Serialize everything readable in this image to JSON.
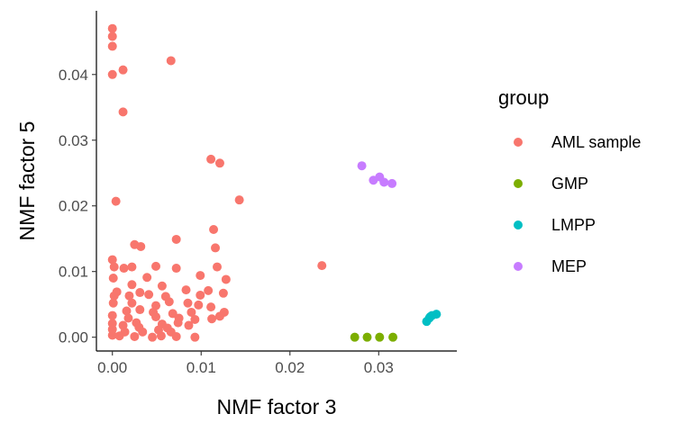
{
  "chart_data": {
    "type": "scatter",
    "xlabel": "NMF factor 3",
    "ylabel": "NMF factor 5",
    "xlim": [
      -0.0018,
      0.0388
    ],
    "ylim": [
      -0.0021,
      0.0497
    ],
    "x_ticks": [
      0.0,
      0.01,
      0.02,
      0.03
    ],
    "x_tick_labels": [
      "0.00",
      "0.01",
      "0.02",
      "0.03"
    ],
    "y_ticks": [
      0.0,
      0.01,
      0.02,
      0.03,
      0.04
    ],
    "y_tick_labels": [
      "0.00",
      "0.01",
      "0.02",
      "0.03",
      "0.04"
    ],
    "grid": false,
    "legend": {
      "title": "group",
      "position": "right"
    },
    "series": [
      {
        "name": "AML sample",
        "color": "#F8766D",
        "points": [
          [
            0.0,
            0.047
          ],
          [
            0.0,
            0.0458
          ],
          [
            0.0,
            0.0443
          ],
          [
            0.0,
            0.04
          ],
          [
            0.0012,
            0.0407
          ],
          [
            0.0066,
            0.0421
          ],
          [
            0.0012,
            0.0343
          ],
          [
            0.0111,
            0.0271
          ],
          [
            0.0121,
            0.0265
          ],
          [
            0.0004,
            0.0207
          ],
          [
            0.0143,
            0.0209
          ],
          [
            0.0236,
            0.0109
          ],
          [
            0.0114,
            0.0164
          ],
          [
            0.0072,
            0.0149
          ],
          [
            0.0025,
            0.0141
          ],
          [
            0.0032,
            0.0138
          ],
          [
            0.0116,
            0.0136
          ],
          [
            0.0,
            0.0118
          ],
          [
            0.0002,
            0.0107
          ],
          [
            0.0013,
            0.0105
          ],
          [
            0.0022,
            0.0107
          ],
          [
            0.0049,
            0.0108
          ],
          [
            0.0072,
            0.0105
          ],
          [
            0.0118,
            0.0107
          ],
          [
            0.0001,
            0.009
          ],
          [
            0.0039,
            0.0091
          ],
          [
            0.0099,
            0.0094
          ],
          [
            0.0022,
            0.008
          ],
          [
            0.0056,
            0.0078
          ],
          [
            0.0128,
            0.0088
          ],
          [
            0.0005,
            0.0069
          ],
          [
            0.0002,
            0.0063
          ],
          [
            0.0019,
            0.0063
          ],
          [
            0.0031,
            0.0068
          ],
          [
            0.0041,
            0.0065
          ],
          [
            0.006,
            0.0062
          ],
          [
            0.0083,
            0.0072
          ],
          [
            0.0099,
            0.0064
          ],
          [
            0.0108,
            0.0071
          ],
          [
            0.0125,
            0.0067
          ],
          [
            0.0001,
            0.0052
          ],
          [
            0.0022,
            0.0052
          ],
          [
            0.0049,
            0.0048
          ],
          [
            0.0064,
            0.0054
          ],
          [
            0.0085,
            0.0052
          ],
          [
            0.0097,
            0.0049
          ],
          [
            0.0111,
            0.0046
          ],
          [
            0.0016,
            0.004
          ],
          [
            0.0031,
            0.0042
          ],
          [
            0.0046,
            0.0038
          ],
          [
            0.0068,
            0.0036
          ],
          [
            0.0089,
            0.0038
          ],
          [
            0.0126,
            0.0038
          ],
          [
            0.0,
            0.0033
          ],
          [
            0.0018,
            0.0029
          ],
          [
            0.0049,
            0.0031
          ],
          [
            0.0075,
            0.0029
          ],
          [
            0.0093,
            0.0027
          ],
          [
            0.0112,
            0.0028
          ],
          [
            0.0121,
            0.0032
          ],
          [
            0.0,
            0.0021
          ],
          [
            0.0012,
            0.0018
          ],
          [
            0.0027,
            0.0022
          ],
          [
            0.0056,
            0.002
          ],
          [
            0.0074,
            0.0022
          ],
          [
            0.0086,
            0.0018
          ],
          [
            0.0,
            0.0012
          ],
          [
            0.0014,
            0.0008
          ],
          [
            0.0034,
            0.0008
          ],
          [
            0.0052,
            0.0011
          ],
          [
            0.0066,
            0.0008
          ],
          [
            0.0,
            0.0003
          ],
          [
            0.0008,
            0.0002
          ],
          [
            0.0025,
            0.0001
          ],
          [
            0.0045,
            0.0
          ],
          [
            0.0055,
            0.0002
          ],
          [
            0.0072,
            0.0001
          ],
          [
            0.0093,
            0.0
          ],
          [
            0.003,
            0.0015
          ],
          [
            0.0062,
            0.0014
          ]
        ]
      },
      {
        "name": "GMP",
        "color": "#7CAE00",
        "points": [
          [
            0.0273,
            0.0
          ],
          [
            0.0287,
            0.0
          ],
          [
            0.0301,
            0.0
          ],
          [
            0.0316,
            0.0
          ]
        ]
      },
      {
        "name": "LMPP",
        "color": "#00BFC4",
        "points": [
          [
            0.0354,
            0.0024
          ],
          [
            0.0357,
            0.0029
          ],
          [
            0.036,
            0.0033
          ],
          [
            0.0365,
            0.0035
          ],
          [
            0.0358,
            0.0031
          ]
        ]
      },
      {
        "name": "MEP",
        "color": "#C77CFF",
        "points": [
          [
            0.0281,
            0.0261
          ],
          [
            0.0294,
            0.0239
          ],
          [
            0.0301,
            0.0244
          ],
          [
            0.0306,
            0.0236
          ],
          [
            0.0315,
            0.0234
          ]
        ]
      }
    ]
  }
}
